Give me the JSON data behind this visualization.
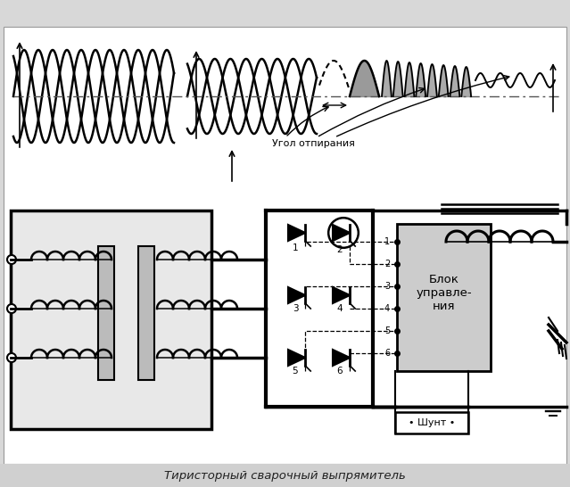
{
  "title": "Тиристорный сварочный выпрямитель",
  "bg_color": "#d8d8d8",
  "main_bg": "#ffffff",
  "label_angle": "Угол отпирания",
  "blok_label": "Блок\nуправле-\nния",
  "shunt_label": "• Шунт •"
}
